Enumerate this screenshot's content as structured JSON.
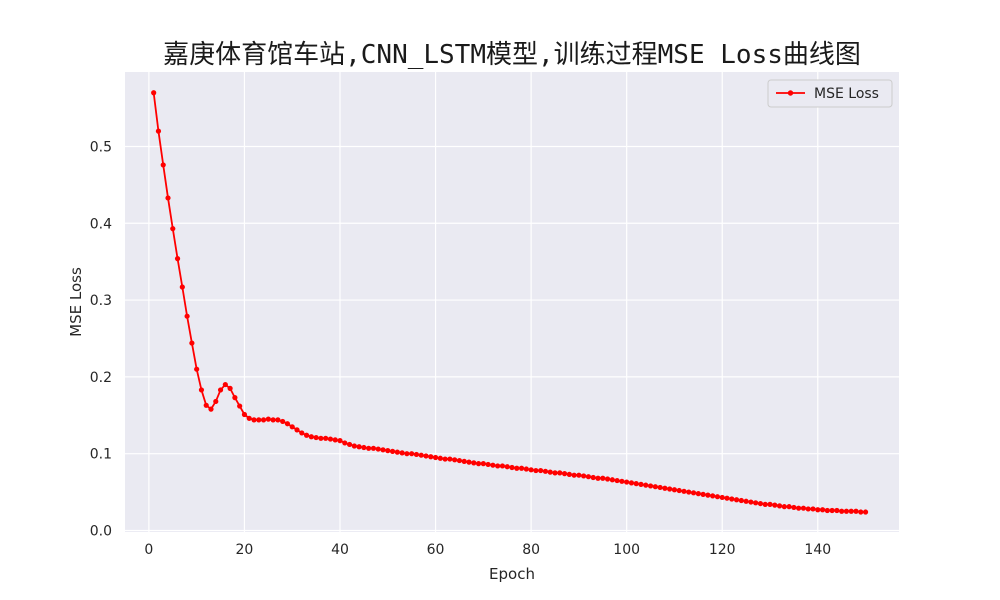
{
  "chart_data": {
    "type": "line",
    "title": "嘉庚体育馆车站,CNN_LSTM模型,训练过程MSE Loss曲线图",
    "xlabel": "Epoch",
    "ylabel": "MSE Loss",
    "xlim": [
      -5,
      157
    ],
    "ylim": [
      -0.002,
      0.597
    ],
    "xticks": [
      0,
      20,
      40,
      60,
      80,
      100,
      120,
      140
    ],
    "yticks": [
      0.0,
      0.1,
      0.2,
      0.3,
      0.4,
      0.5
    ],
    "xtick_labels": [
      "0",
      "20",
      "40",
      "60",
      "80",
      "100",
      "120",
      "140"
    ],
    "ytick_labels": [
      "0.0",
      "0.1",
      "0.2",
      "0.3",
      "0.4",
      "0.5"
    ],
    "grid": true,
    "legend_position": "top-right",
    "colors": {
      "background": "#eaeaf2",
      "grid": "#ffffff",
      "series": "#ff0000"
    },
    "series": [
      {
        "name": "MSE Loss",
        "x": [
          1,
          2,
          3,
          4,
          5,
          6,
          7,
          8,
          9,
          10,
          11,
          12,
          13,
          14,
          15,
          16,
          17,
          18,
          19,
          20,
          21,
          22,
          23,
          24,
          25,
          26,
          27,
          28,
          29,
          30,
          31,
          32,
          33,
          34,
          35,
          36,
          37,
          38,
          39,
          40,
          41,
          42,
          43,
          44,
          45,
          46,
          47,
          48,
          49,
          50,
          51,
          52,
          53,
          54,
          55,
          56,
          57,
          58,
          59,
          60,
          61,
          62,
          63,
          64,
          65,
          66,
          67,
          68,
          69,
          70,
          71,
          72,
          73,
          74,
          75,
          76,
          77,
          78,
          79,
          80,
          81,
          82,
          83,
          84,
          85,
          86,
          87,
          88,
          89,
          90,
          91,
          92,
          93,
          94,
          95,
          96,
          97,
          98,
          99,
          100,
          101,
          102,
          103,
          104,
          105,
          106,
          107,
          108,
          109,
          110,
          111,
          112,
          113,
          114,
          115,
          116,
          117,
          118,
          119,
          120,
          121,
          122,
          123,
          124,
          125,
          126,
          127,
          128,
          129,
          130,
          131,
          132,
          133,
          134,
          135,
          136,
          137,
          138,
          139,
          140,
          141,
          142,
          143,
          144,
          145,
          146,
          147,
          148,
          149,
          150
        ],
        "y": [
          0.57,
          0.52,
          0.476,
          0.433,
          0.393,
          0.354,
          0.317,
          0.279,
          0.244,
          0.21,
          0.183,
          0.163,
          0.158,
          0.168,
          0.183,
          0.19,
          0.185,
          0.173,
          0.162,
          0.151,
          0.146,
          0.144,
          0.144,
          0.144,
          0.145,
          0.144,
          0.144,
          0.142,
          0.139,
          0.135,
          0.131,
          0.127,
          0.124,
          0.122,
          0.121,
          0.12,
          0.12,
          0.119,
          0.118,
          0.117,
          0.114,
          0.112,
          0.11,
          0.109,
          0.108,
          0.107,
          0.107,
          0.106,
          0.105,
          0.104,
          0.103,
          0.102,
          0.101,
          0.1,
          0.1,
          0.099,
          0.098,
          0.097,
          0.096,
          0.095,
          0.094,
          0.093,
          0.093,
          0.092,
          0.091,
          0.09,
          0.089,
          0.088,
          0.087,
          0.087,
          0.086,
          0.085,
          0.084,
          0.084,
          0.083,
          0.082,
          0.081,
          0.081,
          0.08,
          0.079,
          0.078,
          0.078,
          0.077,
          0.076,
          0.075,
          0.075,
          0.074,
          0.073,
          0.072,
          0.072,
          0.071,
          0.07,
          0.069,
          0.068,
          0.068,
          0.067,
          0.066,
          0.065,
          0.064,
          0.063,
          0.062,
          0.061,
          0.06,
          0.059,
          0.058,
          0.057,
          0.056,
          0.055,
          0.054,
          0.053,
          0.052,
          0.051,
          0.05,
          0.049,
          0.048,
          0.047,
          0.046,
          0.045,
          0.044,
          0.043,
          0.042,
          0.041,
          0.04,
          0.039,
          0.038,
          0.037,
          0.036,
          0.035,
          0.034,
          0.034,
          0.033,
          0.032,
          0.031,
          0.031,
          0.03,
          0.029,
          0.029,
          0.028,
          0.028,
          0.027,
          0.027,
          0.026,
          0.026,
          0.026,
          0.025,
          0.025,
          0.025,
          0.025,
          0.024,
          0.024
        ]
      }
    ]
  }
}
